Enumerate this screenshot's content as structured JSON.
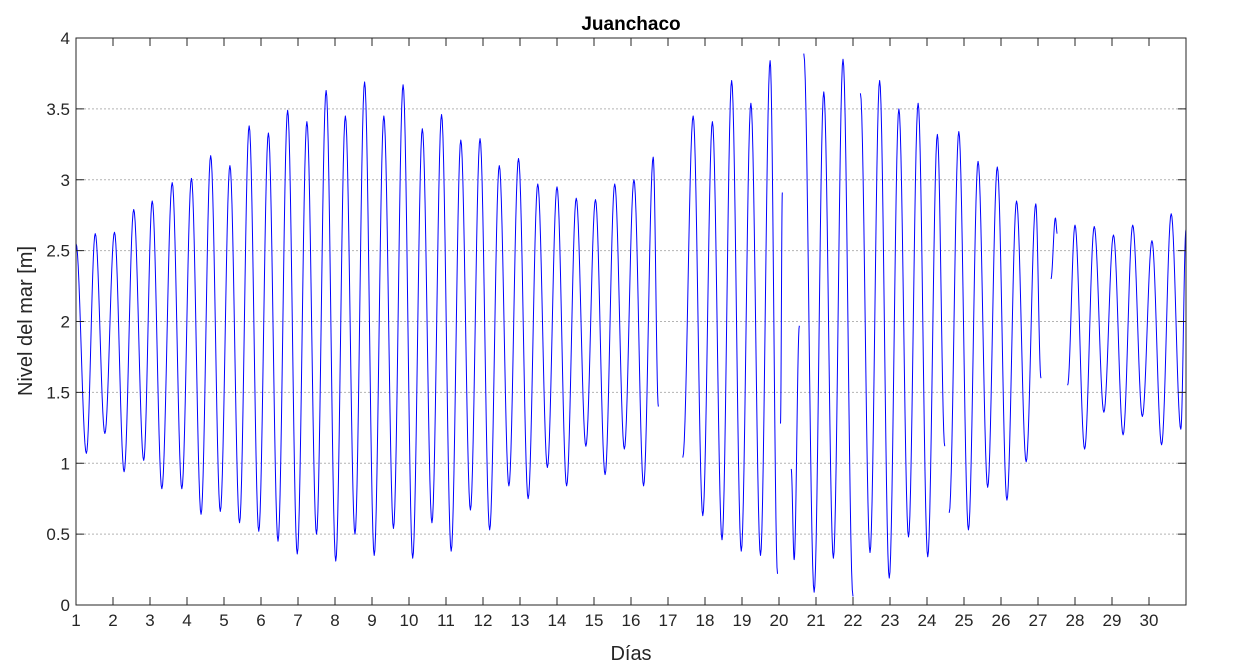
{
  "chart_data": {
    "type": "line",
    "title": "Juanchaco",
    "xlabel": "Días",
    "ylabel": "Nivel del mar [m]",
    "xlim": [
      1,
      31
    ],
    "ylim": [
      0,
      4
    ],
    "xticks": [
      "1",
      "2",
      "3",
      "4",
      "5",
      "6",
      "7",
      "8",
      "9",
      "10",
      "11",
      "12",
      "13",
      "14",
      "15",
      "16",
      "17",
      "18",
      "19",
      "20",
      "21",
      "22",
      "23",
      "24",
      "25",
      "26",
      "27",
      "28",
      "29",
      "30"
    ],
    "yticks": [
      "0",
      "0.5",
      "1",
      "1.5",
      "2",
      "2.5",
      "3",
      "3.5",
      "4"
    ],
    "grid": "horizontal-dotted",
    "line_color": "#0000ff",
    "series": [
      {
        "extrema": [
          [
            1.0,
            2.55
          ],
          [
            1.28,
            1.07
          ],
          [
            1.52,
            2.62
          ],
          [
            1.78,
            1.21
          ],
          [
            2.04,
            2.63
          ],
          [
            2.3,
            0.94
          ],
          [
            2.56,
            2.79
          ],
          [
            2.83,
            1.02
          ],
          [
            3.06,
            2.85
          ],
          [
            3.32,
            0.82
          ],
          [
            3.6,
            2.98
          ],
          [
            3.86,
            0.82
          ],
          [
            4.12,
            3.01
          ],
          [
            4.38,
            0.64
          ],
          [
            4.64,
            3.17
          ],
          [
            4.9,
            0.66
          ],
          [
            5.16,
            3.1
          ],
          [
            5.42,
            0.58
          ],
          [
            5.68,
            3.38
          ],
          [
            5.94,
            0.52
          ],
          [
            6.2,
            3.33
          ],
          [
            6.46,
            0.45
          ],
          [
            6.72,
            3.49
          ],
          [
            6.98,
            0.36
          ],
          [
            7.24,
            3.41
          ],
          [
            7.5,
            0.5
          ],
          [
            7.76,
            3.63
          ],
          [
            8.02,
            0.31
          ],
          [
            8.28,
            3.45
          ],
          [
            8.54,
            0.5
          ],
          [
            8.8,
            3.69
          ],
          [
            9.06,
            0.35
          ],
          [
            9.32,
            3.45
          ],
          [
            9.58,
            0.54
          ],
          [
            9.84,
            3.67
          ],
          [
            10.1,
            0.33
          ],
          [
            10.36,
            3.36
          ],
          [
            10.62,
            0.58
          ],
          [
            10.88,
            3.46
          ],
          [
            11.14,
            0.38
          ],
          [
            11.4,
            3.28
          ],
          [
            11.66,
            0.67
          ],
          [
            11.92,
            3.29
          ],
          [
            12.18,
            0.53
          ],
          [
            12.44,
            3.1
          ],
          [
            12.7,
            0.84
          ],
          [
            12.96,
            3.15
          ],
          [
            13.22,
            0.75
          ],
          [
            13.48,
            2.97
          ],
          [
            13.74,
            0.97
          ],
          [
            14.0,
            2.95
          ],
          [
            14.26,
            0.84
          ],
          [
            14.52,
            2.87
          ],
          [
            14.78,
            1.12
          ],
          [
            15.04,
            2.86
          ],
          [
            15.3,
            0.92
          ],
          [
            15.56,
            2.97
          ],
          [
            15.82,
            1.1
          ],
          [
            16.08,
            3.0
          ],
          [
            16.34,
            0.84
          ],
          [
            16.6,
            3.16
          ],
          [
            16.74,
            1.4
          ],
          null,
          [
            17.4,
            1.04
          ],
          [
            17.68,
            3.45
          ],
          [
            17.94,
            0.63
          ],
          [
            18.2,
            3.41
          ],
          [
            18.46,
            0.46
          ],
          [
            18.72,
            3.7
          ],
          [
            18.98,
            0.38
          ],
          [
            19.24,
            3.54
          ],
          [
            19.5,
            0.35
          ],
          [
            19.76,
            3.84
          ],
          [
            19.96,
            0.22
          ],
          null,
          [
            20.04,
            1.28
          ],
          [
            20.09,
            2.91
          ],
          null,
          [
            20.33,
            0.96
          ],
          [
            20.41,
            0.32
          ],
          [
            20.55,
            1.97
          ],
          null,
          [
            20.67,
            3.89
          ],
          [
            20.95,
            0.09
          ],
          [
            21.21,
            3.62
          ],
          [
            21.47,
            0.33
          ],
          [
            21.73,
            3.85
          ],
          [
            22.0,
            0.06
          ],
          null,
          [
            22.2,
            3.61
          ],
          [
            22.46,
            0.37
          ],
          [
            22.72,
            3.7
          ],
          [
            22.98,
            0.19
          ],
          [
            23.24,
            3.5
          ],
          [
            23.5,
            0.48
          ],
          [
            23.76,
            3.54
          ],
          [
            24.02,
            0.34
          ],
          [
            24.28,
            3.32
          ],
          [
            24.48,
            1.12
          ],
          null,
          [
            24.6,
            0.65
          ],
          [
            24.86,
            3.34
          ],
          [
            25.12,
            0.53
          ],
          [
            25.38,
            3.13
          ],
          [
            25.64,
            0.83
          ],
          [
            25.9,
            3.09
          ],
          [
            26.16,
            0.74
          ],
          [
            26.42,
            2.85
          ],
          [
            26.68,
            1.01
          ],
          [
            26.94,
            2.83
          ],
          [
            27.08,
            1.6
          ],
          null,
          [
            27.35,
            2.3
          ],
          [
            27.47,
            2.73
          ],
          [
            27.52,
            2.62
          ],
          null,
          [
            27.8,
            1.55
          ],
          [
            28.0,
            2.68
          ],
          [
            28.26,
            1.1
          ],
          [
            28.52,
            2.67
          ],
          [
            28.78,
            1.36
          ],
          [
            29.04,
            2.61
          ],
          [
            29.3,
            1.2
          ],
          [
            29.56,
            2.68
          ],
          [
            29.82,
            1.33
          ],
          [
            30.08,
            2.57
          ],
          [
            30.34,
            1.13
          ],
          [
            30.6,
            2.76
          ],
          [
            30.86,
            1.24
          ],
          [
            31.0,
            2.65
          ]
        ]
      }
    ]
  }
}
